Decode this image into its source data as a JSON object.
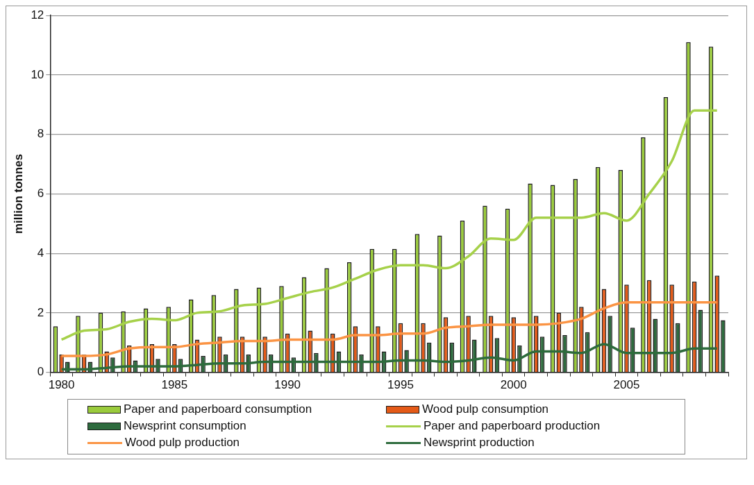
{
  "chart_data": {
    "type": "bar",
    "ylabel": "million tonnes",
    "categories": [
      "1980",
      null,
      null,
      null,
      null,
      "1985",
      null,
      null,
      null,
      null,
      "1990",
      null,
      null,
      null,
      null,
      "1995",
      null,
      null,
      null,
      null,
      "2000",
      null,
      null,
      null,
      null,
      "2005",
      null,
      null,
      null,
      null
    ],
    "series": [
      {
        "name": "Paper and paperboard consumption",
        "color": "#9acb3c",
        "values": [
          1.55,
          1.9,
          2.0,
          2.05,
          2.15,
          2.2,
          2.45,
          2.6,
          2.8,
          2.85,
          2.9,
          3.2,
          3.5,
          3.7,
          4.15,
          4.15,
          4.65,
          4.6,
          5.1,
          5.6,
          5.5,
          6.35,
          6.3,
          6.5,
          6.9,
          6.8,
          7.9,
          9.25,
          11.1,
          10.95
        ]
      },
      {
        "name": "Wood pulp consumption",
        "color": "#e45a18",
        "values": [
          0.6,
          0.6,
          0.7,
          0.9,
          0.95,
          0.95,
          1.1,
          1.2,
          1.2,
          1.2,
          1.3,
          1.4,
          1.3,
          1.55,
          1.55,
          1.65,
          1.65,
          1.85,
          1.9,
          1.9,
          1.85,
          1.9,
          2.0,
          2.2,
          2.8,
          2.95,
          3.1,
          2.95,
          3.05,
          3.25
        ]
      },
      {
        "name": "Newsprint consumption",
        "color": "#2e6b3e",
        "values": [
          0.35,
          0.35,
          0.5,
          0.4,
          0.45,
          0.45,
          0.55,
          0.6,
          0.6,
          0.6,
          0.5,
          0.65,
          0.7,
          0.6,
          0.7,
          0.75,
          1.0,
          1.0,
          1.1,
          1.15,
          0.9,
          1.2,
          1.25,
          1.35,
          1.9,
          1.5,
          1.8,
          1.65,
          2.1,
          1.75
        ]
      },
      {
        "name": "Paper and paperboard production",
        "type": "line",
        "color": "#a6d14a",
        "values": [
          1.1,
          1.4,
          1.45,
          1.7,
          1.8,
          1.75,
          2.0,
          2.05,
          2.25,
          2.3,
          2.5,
          2.7,
          2.85,
          3.15,
          3.45,
          3.6,
          3.6,
          3.5,
          3.9,
          4.5,
          4.45,
          5.2,
          5.2,
          5.2,
          5.35,
          5.1,
          6.0,
          7.1,
          8.8,
          8.8
        ]
      },
      {
        "name": "Wood pulp production",
        "type": "line",
        "color": "#fb9444",
        "values": [
          0.55,
          0.55,
          0.6,
          0.8,
          0.85,
          0.85,
          0.95,
          1.0,
          1.05,
          1.05,
          1.1,
          1.1,
          1.1,
          1.25,
          1.25,
          1.3,
          1.3,
          1.5,
          1.55,
          1.6,
          1.6,
          1.6,
          1.65,
          1.8,
          2.15,
          2.35,
          2.35,
          2.35,
          2.35,
          2.35
        ]
      },
      {
        "name": "Newsprint production",
        "type": "line",
        "color": "#2d6b3c",
        "values": [
          0.1,
          0.1,
          0.15,
          0.2,
          0.2,
          0.2,
          0.25,
          0.3,
          0.3,
          0.35,
          0.35,
          0.35,
          0.35,
          0.35,
          0.35,
          0.4,
          0.4,
          0.35,
          0.4,
          0.5,
          0.4,
          0.7,
          0.7,
          0.65,
          0.95,
          0.65,
          0.65,
          0.65,
          0.8,
          0.8
        ]
      }
    ],
    "ylim": [
      0,
      12
    ],
    "yticks": [
      0,
      2,
      4,
      6,
      8,
      10,
      12
    ],
    "grid": "y",
    "legend": "bottom",
    "marker": "none",
    "line_style": "solid"
  }
}
